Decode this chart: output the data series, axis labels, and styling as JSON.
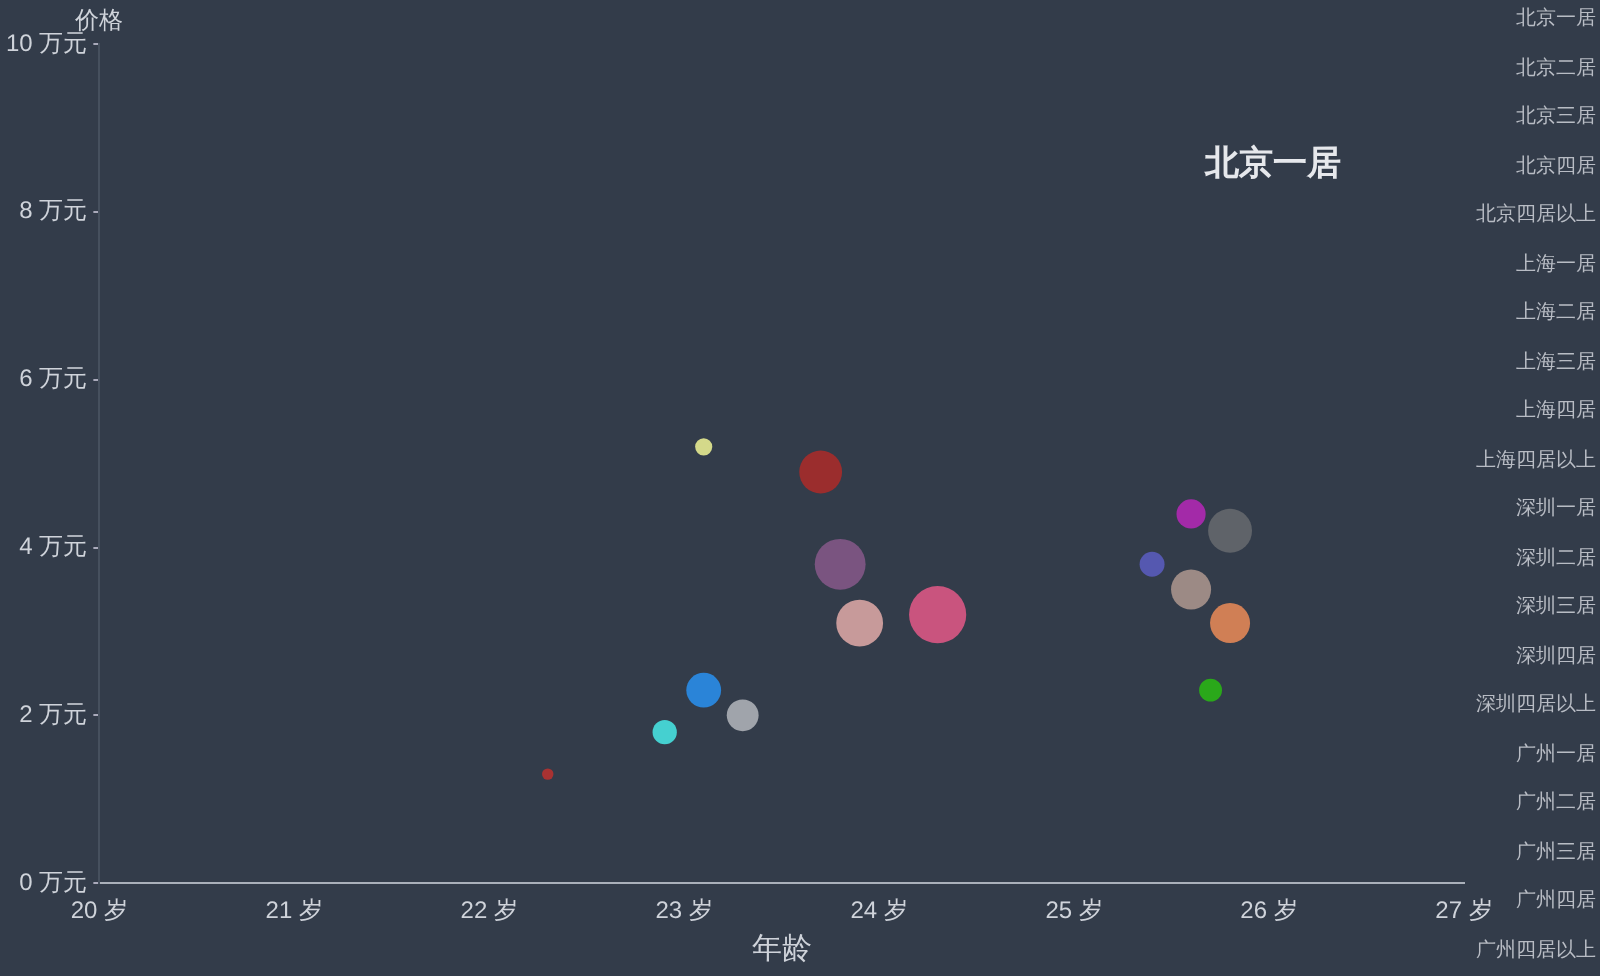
{
  "chart_data": {
    "type": "bubble",
    "title": "北京一居",
    "xlabel": "年龄",
    "ylabel": "价格",
    "xlim": [
      20,
      27
    ],
    "xticks": [
      {
        "value": 20,
        "label": "20 岁"
      },
      {
        "value": 21,
        "label": "21 岁"
      },
      {
        "value": 22,
        "label": "22 岁"
      },
      {
        "value": 23,
        "label": "23 岁"
      },
      {
        "value": 24,
        "label": "24 岁"
      },
      {
        "value": 25,
        "label": "25 岁"
      },
      {
        "value": 26,
        "label": "26 岁"
      },
      {
        "value": 27,
        "label": "27 岁"
      }
    ],
    "ylim": [
      0,
      10
    ],
    "yticks": [
      {
        "value": 0,
        "label": "0 万元"
      },
      {
        "value": 2,
        "label": "2 万元"
      },
      {
        "value": 4,
        "label": "4 万元"
      },
      {
        "value": 6,
        "label": "6 万元"
      },
      {
        "value": 8,
        "label": "8 万元"
      },
      {
        "value": 10,
        "label": "10 万元"
      }
    ],
    "grid": false,
    "legend": false,
    "x": [
      22.3,
      23.1,
      23.7,
      23.8,
      23.9,
      24.3,
      23.1,
      23.3,
      22.9,
      25.6,
      25.8,
      25.4,
      25.6,
      25.8,
      25.7
    ],
    "values": [
      1.3,
      5.2,
      4.9,
      3.8,
      3.1,
      3.2,
      2.3,
      2.0,
      1.8,
      4.4,
      4.2,
      3.8,
      3.5,
      3.1,
      2.3
    ],
    "sizes": [
      0.04,
      0.09,
      0.56,
      0.79,
      0.67,
      1,
      0.37,
      0.31,
      0.18,
      0.26,
      0.59,
      0.19,
      0.49,
      0.49,
      0.16
    ],
    "colors": [
      "#a83232",
      "#d4d98a",
      "#9b2d2d",
      "#7a5480",
      "#c79a9a",
      "#c9547e",
      "#2a84d8",
      "#a0a4ab",
      "#45d0d0",
      "#a32aa8",
      "#5f6369",
      "#5558b0",
      "#9c8a85",
      "#d07f55",
      "#2aa81a"
    ],
    "annotations": [
      "北京一居",
      "北京二居",
      "北京三居",
      "北京四居",
      "北京四居以上",
      "上海一居",
      "上海二居",
      "上海三居",
      "上海四居",
      "上海四居以上",
      "深圳一居",
      "深圳二居",
      "深圳三居",
      "深圳四居",
      "深圳四居以上",
      "广州一居",
      "广州二居",
      "广州三居",
      "广州四居",
      "广州四居以上"
    ]
  }
}
